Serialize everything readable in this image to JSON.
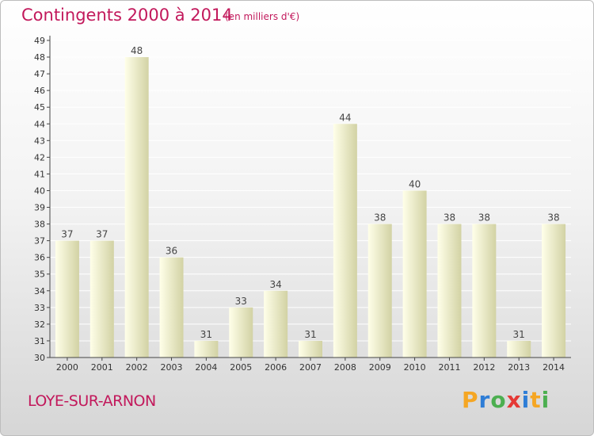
{
  "header": {
    "title": "Contingents 2000 à 2014",
    "subtitle": "(en milliers d'€)"
  },
  "footer": {
    "commune": "LOYE-SUR-ARNON",
    "brand_letters": [
      "P",
      "r",
      "o",
      "x",
      "i",
      "t",
      "i"
    ],
    "brand_colors": [
      "#f5a623",
      "#2e7dd6",
      "#4caf50",
      "#e53935",
      "#2e7dd6",
      "#f5a623",
      "#4caf50"
    ]
  },
  "colors": {
    "title": "#c2185b",
    "bar_light": "#ffffe6",
    "bar_dark": "#d3d3a6",
    "grid": "#ffffff",
    "axis": "#333333"
  },
  "chart_data": {
    "type": "bar",
    "title": "Contingents 2000 à 2014",
    "subtitle": "(en milliers d'€)",
    "xlabel": "",
    "ylabel": "",
    "ylim": [
      30,
      49
    ],
    "yticks": [
      30,
      31,
      32,
      33,
      34,
      35,
      36,
      37,
      38,
      39,
      40,
      41,
      42,
      43,
      44,
      45,
      46,
      47,
      48,
      49
    ],
    "grid": true,
    "categories": [
      "2000",
      "2001",
      "2002",
      "2003",
      "2004",
      "2005",
      "2006",
      "2007",
      "2008",
      "2009",
      "2010",
      "2011",
      "2012",
      "2013",
      "2014"
    ],
    "values": [
      37,
      37,
      48,
      36,
      31,
      33,
      34,
      31,
      44,
      38,
      40,
      38,
      38,
      31,
      38
    ]
  }
}
